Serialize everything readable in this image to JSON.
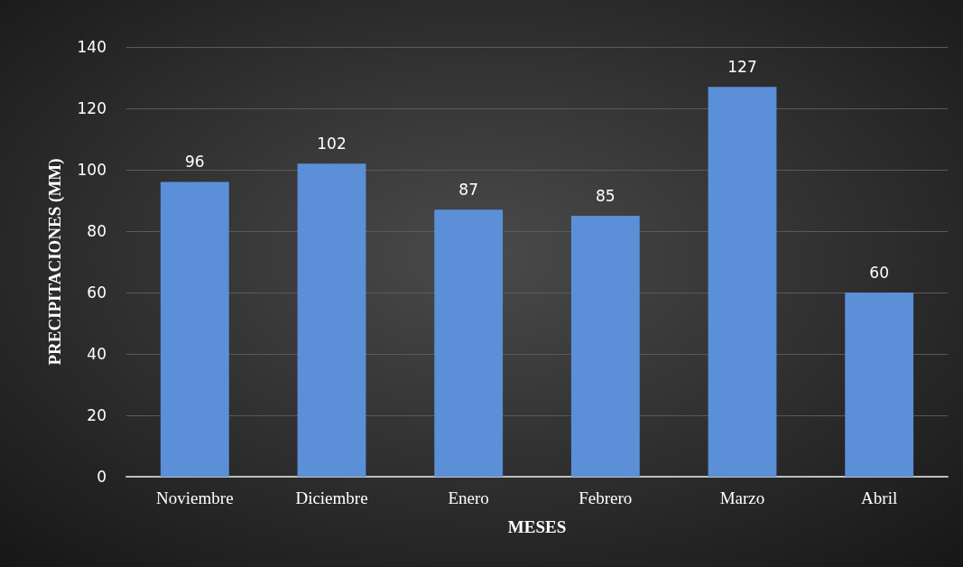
{
  "chart_data": {
    "type": "bar",
    "xlabel": "MESES",
    "ylabel": "PRECIPITACIONES (MM)",
    "categories": [
      "Noviembre",
      "Diciembre",
      "Enero",
      "Febrero",
      "Marzo",
      "Abril"
    ],
    "values": [
      96,
      102,
      87,
      85,
      127,
      60
    ],
    "color": "#5b8fd8",
    "ylim": [
      0,
      140
    ],
    "yticks": [
      0,
      20,
      40,
      60,
      80,
      100,
      120,
      140
    ],
    "grid": "y",
    "data_labels": true
  }
}
